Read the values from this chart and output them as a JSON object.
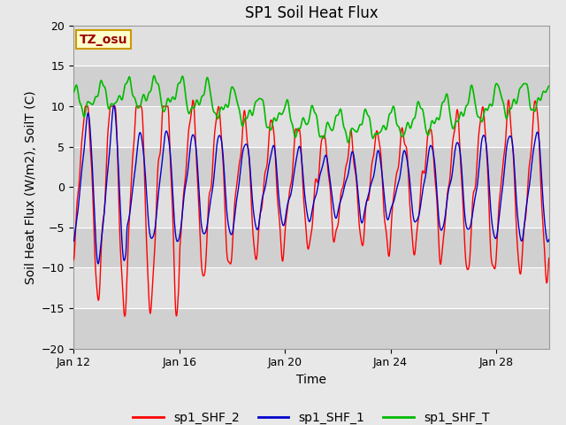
{
  "title": "SP1 Soil Heat Flux",
  "xlabel": "Time",
  "ylabel": "Soil Heat Flux (W/m2), SoilT (C)",
  "ylim": [
    -20,
    20
  ],
  "yticks": [
    -20,
    -15,
    -10,
    -5,
    0,
    5,
    10,
    15,
    20
  ],
  "xtick_positions": [
    0,
    4,
    8,
    12,
    16
  ],
  "xtick_labels": [
    "Jan 12",
    "Jan 16",
    "Jan 20",
    "Jan 24",
    "Jan 28"
  ],
  "tz_label": "TZ_osu",
  "legend_entries": [
    "sp1_SHF_2",
    "sp1_SHF_1",
    "sp1_SHF_T"
  ],
  "line_colors": [
    "#ff0000",
    "#0000cc",
    "#00bb00"
  ],
  "fig_facecolor": "#e8e8e8",
  "plot_facecolor": "#e0e0e0",
  "band_colors": [
    "#d0d0d0",
    "#e0e0e0"
  ],
  "title_fontsize": 12,
  "label_fontsize": 10,
  "tick_fontsize": 9,
  "legend_fontsize": 10
}
